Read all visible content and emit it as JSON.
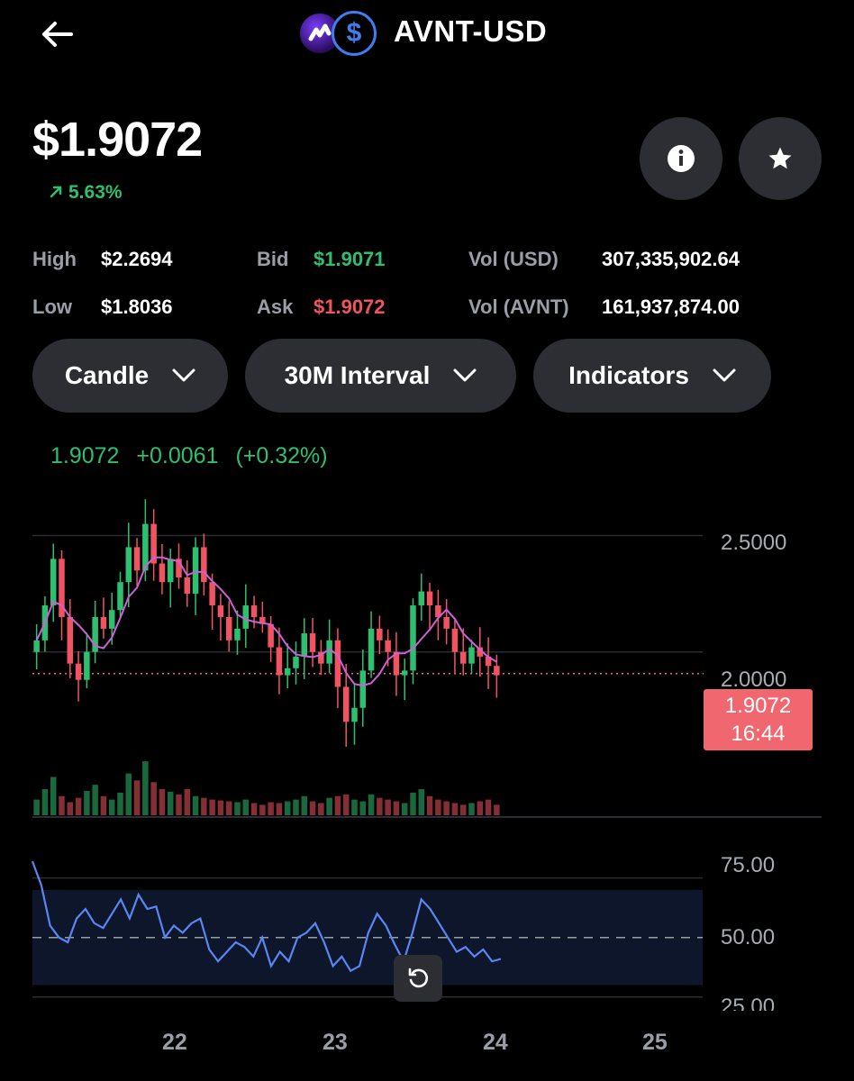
{
  "header": {
    "title": "AVNT-USD",
    "back_icon": "arrow-left-icon",
    "logo_icons": [
      "avnt-logo-icon",
      "usd-coin-icon"
    ]
  },
  "price": {
    "value": "$1.9072",
    "change": "5.63%",
    "change_icon": "arrow-up-right-icon"
  },
  "actions": {
    "info_icon": "info-icon",
    "favorite_icon": "star-icon"
  },
  "stats": {
    "high_label": "High",
    "high_value": "$2.2694",
    "low_label": "Low",
    "low_value": "$1.8036",
    "bid_label": "Bid",
    "bid_value": "$1.9071",
    "ask_label": "Ask",
    "ask_value": "$1.9072",
    "vol_usd_label": "Vol (USD)",
    "vol_usd_value": "307,335,902.64",
    "vol_avnt_label": "Vol (AVNT)",
    "vol_avnt_value": "161,937,874.00"
  },
  "controls": {
    "chart_type": "Candle",
    "interval": "30M Interval",
    "indicators": "Indicators"
  },
  "chart_legend": {
    "price": "1.9072",
    "change": "+0.0061",
    "change_pct": "(+0.32%)"
  },
  "colors": {
    "up": "#2fbf71",
    "down": "#f05463",
    "ma": "#d05fd6",
    "rsi": "#5b86f2",
    "tag": "#f0676f"
  },
  "chart_data": {
    "type": "candlestick",
    "y_axis": {
      "ticks": [
        "2.5000",
        "2.0000"
      ],
      "range": [
        1.55,
        2.68
      ]
    },
    "x_axis": {
      "ticks": [
        "22",
        "23",
        "24",
        "25"
      ]
    },
    "current_price_tag": {
      "price": "1.9072",
      "time": "16:44"
    },
    "close_series": [
      2.05,
      2.2,
      2.4,
      2.15,
      1.95,
      1.88,
      2.0,
      2.15,
      2.1,
      2.18,
      2.3,
      2.45,
      2.35,
      2.55,
      2.38,
      2.3,
      2.4,
      2.32,
      2.25,
      2.45,
      2.3,
      2.2,
      2.15,
      2.05,
      2.1,
      2.2,
      2.15,
      2.12,
      2.02,
      1.9,
      1.93,
      1.98,
      2.08,
      2.0,
      1.95,
      2.05,
      1.85,
      1.7,
      1.76,
      1.92,
      2.1,
      2.05,
      2.0,
      1.9,
      1.92,
      2.2,
      2.26,
      2.2,
      2.15,
      2.1,
      2.0,
      1.95,
      2.02,
      1.98,
      1.94,
      1.9
    ],
    "rsi": {
      "ticks": [
        "75.00",
        "50.00",
        "25.00"
      ],
      "range": [
        20,
        90
      ],
      "band": [
        30,
        70
      ],
      "values": [
        82,
        72,
        55,
        50,
        48,
        58,
        62,
        56,
        54,
        60,
        66,
        58,
        68,
        62,
        63,
        50,
        55,
        52,
        56,
        58,
        45,
        40,
        44,
        48,
        46,
        42,
        50,
        38,
        44,
        40,
        50,
        52,
        56,
        48,
        38,
        42,
        36,
        38,
        52,
        60,
        55,
        47,
        40,
        52,
        66,
        62,
        56,
        50,
        44,
        46,
        42,
        45,
        40,
        41
      ]
    },
    "volume": [
      18,
      30,
      44,
      22,
      15,
      20,
      28,
      35,
      22,
      18,
      26,
      48,
      40,
      62,
      38,
      30,
      27,
      24,
      30,
      22,
      20,
      18,
      17,
      16,
      15,
      18,
      14,
      12,
      15,
      14,
      16,
      18,
      22,
      16,
      14,
      20,
      22,
      24,
      18,
      16,
      24,
      20,
      18,
      16,
      14,
      26,
      30,
      22,
      18,
      16,
      14,
      12,
      14,
      16,
      18,
      12
    ]
  }
}
